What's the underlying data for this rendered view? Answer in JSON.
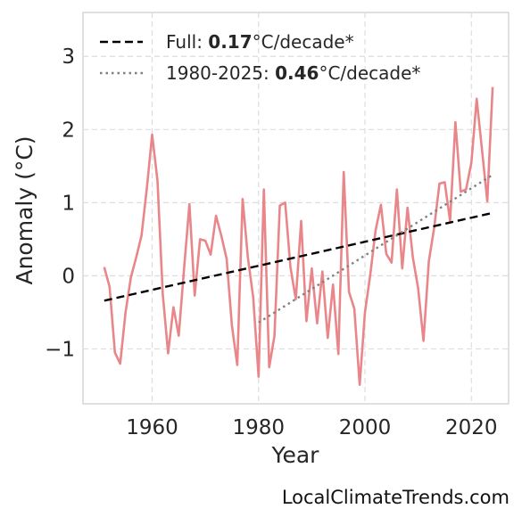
{
  "chart_data": {
    "type": "line",
    "title": "",
    "xlabel": "Year",
    "ylabel": "Anomaly (°C)",
    "xlim": [
      1947,
      2027
    ],
    "ylim": [
      -1.75,
      3.6
    ],
    "xticks": [
      1960,
      1980,
      2000,
      2020
    ],
    "yticks": [
      -1,
      0,
      1,
      2,
      3
    ],
    "ytick_labels": [
      "−1",
      "0",
      "1",
      "2",
      "3"
    ],
    "grid": true,
    "legend_placement": "top-left",
    "colors": {
      "series": "#e8868a",
      "full_trend": "#000000",
      "recent_trend": "#808080"
    },
    "x": [
      1951,
      1952,
      1953,
      1954,
      1955,
      1956,
      1957,
      1958,
      1959,
      1960,
      1961,
      1962,
      1963,
      1964,
      1965,
      1966,
      1967,
      1968,
      1969,
      1970,
      1971,
      1972,
      1973,
      1974,
      1975,
      1976,
      1977,
      1978,
      1979,
      1980,
      1981,
      1982,
      1983,
      1984,
      1985,
      1986,
      1987,
      1988,
      1989,
      1990,
      1991,
      1992,
      1993,
      1994,
      1995,
      1996,
      1997,
      1998,
      1999,
      2000,
      2001,
      2002,
      2003,
      2004,
      2005,
      2006,
      2007,
      2008,
      2009,
      2010,
      2011,
      2012,
      2013,
      2014,
      2015,
      2016,
      2017,
      2018,
      2019,
      2020,
      2021,
      2022,
      2023,
      2024
    ],
    "y": [
      0.12,
      -0.15,
      -1.05,
      -1.2,
      -0.5,
      -0.02,
      0.25,
      0.55,
      1.2,
      1.93,
      1.3,
      -0.25,
      -1.06,
      -0.43,
      -0.82,
      0.1,
      0.98,
      -0.27,
      0.5,
      0.48,
      0.29,
      0.82,
      0.55,
      0.23,
      -0.68,
      -1.22,
      1.05,
      0.25,
      -0.3,
      -1.38,
      1.18,
      -1.25,
      -0.82,
      0.96,
      1.0,
      0.12,
      -0.32,
      0.75,
      -0.62,
      0.1,
      -0.65,
      0.06,
      -0.85,
      -0.12,
      -1.07,
      1.42,
      -0.22,
      -0.45,
      -1.49,
      -0.5,
      0.02,
      0.62,
      0.97,
      0.3,
      0.18,
      1.18,
      0.1,
      0.93,
      0.25,
      -0.17,
      -0.89,
      0.2,
      0.65,
      1.26,
      1.28,
      0.75,
      2.1,
      1.15,
      1.18,
      1.55,
      2.42,
      1.72,
      1.02,
      2.58
    ],
    "series": [
      {
        "name": "Full: 0.17°C/decade*",
        "x": [
          1951,
          2024
        ],
        "y": [
          -0.34,
          0.86
        ]
      },
      {
        "name": "1980-2025: 0.46°C/decade*",
        "x": [
          1980,
          2024
        ],
        "y": [
          -0.64,
          1.38
        ]
      }
    ],
    "legend": [
      {
        "prefix": "Full: ",
        "bold": "0.17",
        "suffix": "°C/decade*"
      },
      {
        "prefix": "1980-2025: ",
        "bold": "0.46",
        "suffix": "°C/decade*"
      }
    ]
  },
  "watermark": "LocalClimateTrends.com"
}
